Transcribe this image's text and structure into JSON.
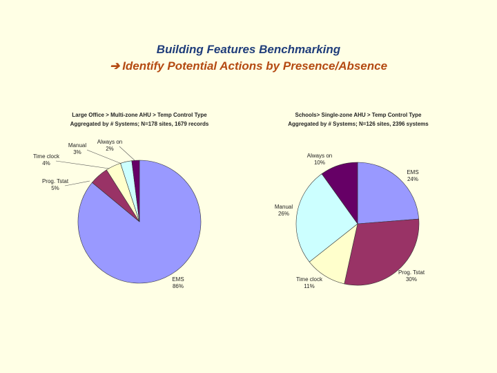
{
  "slide": {
    "title": "Building Features Benchmarking",
    "subtitle_arrow": "➔",
    "subtitle": "Identify Potential Actions by Presence/Absence"
  },
  "colors": {
    "EMS": "#9999FF",
    "Prog. Tstat": "#993366",
    "Time clock": "#FFFFCC",
    "Manual": "#CCFFFF",
    "Always on": "#660066"
  },
  "chart_data": [
    {
      "type": "pie",
      "title": "Large Office > Multi-zone AHU > Temp Control Type",
      "subtitle": "Aggregated by # Systems; N=178 sites, 1679 records",
      "categories": [
        "EMS",
        "Prog. Tstat",
        "Time clock",
        "Manual",
        "Always on"
      ],
      "values": [
        86,
        5,
        4,
        3,
        2
      ],
      "labels": [
        "86%",
        "5%",
        "4%",
        "3%",
        "2%"
      ]
    },
    {
      "type": "pie",
      "title": "Schools> Single-zone AHU > Temp Control Type",
      "subtitle": "Aggregated by # Systems; N=126 sites, 2396 systems",
      "categories": [
        "EMS",
        "Prog. Tstat",
        "Time clock",
        "Manual",
        "Always on"
      ],
      "values": [
        24,
        30,
        11,
        26,
        10
      ],
      "labels": [
        "24%",
        "30%",
        "11%",
        "26%",
        "10%"
      ]
    }
  ]
}
